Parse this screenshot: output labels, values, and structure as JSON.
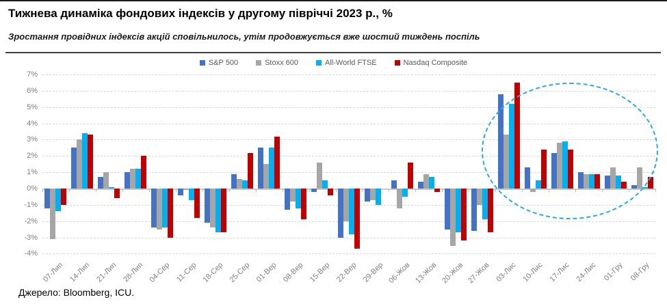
{
  "header": {
    "title": "Тижнева динаміка фондових індексів у другому півріччі 2023 р., %",
    "subtitle": "Зростання провідних індексів акцій сповільнилось, утім продовжується вже шостий тиждень поспіль"
  },
  "footer": {
    "source": "Джерело: Bloomberg, ICU."
  },
  "chart_data": {
    "type": "bar",
    "title": "Тижнева динаміка фондових індексів у другому півріччі 2023 р., %",
    "xlabel": "",
    "ylabel": "",
    "ylim": [
      -4,
      7
    ],
    "ytick_labels": [
      "7%",
      "6%",
      "5%",
      "4%",
      "3%",
      "2%",
      "1%",
      "0%",
      "-1%",
      "-2%",
      "-3%",
      "-4%"
    ],
    "grid": "horizontal-dashed",
    "legend_position": "top-center",
    "categories": [
      "07-Лип",
      "14-Лип",
      "21-Лип",
      "28-Лип",
      "04-Сер",
      "11-Сер",
      "18-Сер",
      "25-Сер",
      "01-Вер",
      "08-Вер",
      "15-Вер",
      "22-Вер",
      "29-Вер",
      "06-Жов",
      "13-Жов",
      "20-Жов",
      "27-Жов",
      "03-Лис",
      "10-Лис",
      "17-Лис",
      "24-Лис",
      "01-Гру",
      "08-Гру"
    ],
    "series": [
      {
        "name": "S&P 500",
        "color": "#4472c4",
        "values": [
          -1.2,
          2.5,
          0.7,
          1.0,
          -2.4,
          -0.4,
          -2.1,
          0.9,
          2.5,
          -1.3,
          -0.2,
          -3.0,
          -0.8,
          0.5,
          0.4,
          -2.5,
          -2.6,
          5.8,
          1.3,
          2.2,
          1.0,
          0.8,
          0.2
        ]
      },
      {
        "name": "Stoxx 600",
        "color": "#a6a6a6",
        "values": [
          -3.1,
          3.0,
          1.0,
          1.2,
          -2.5,
          -0.1,
          -2.4,
          0.6,
          1.5,
          -0.8,
          1.6,
          -2.0,
          -0.7,
          -1.2,
          0.9,
          -3.5,
          -1.0,
          3.3,
          -0.2,
          2.8,
          0.9,
          1.3,
          1.3
        ]
      },
      {
        "name": "All-World FTSE",
        "color": "#00b0f0",
        "values": [
          -1.4,
          3.4,
          0.1,
          1.2,
          -2.4,
          -0.7,
          -2.7,
          0.5,
          2.5,
          -1.2,
          0.5,
          -2.8,
          -1.0,
          -0.5,
          0.7,
          -2.7,
          -1.9,
          5.2,
          0.5,
          2.9,
          0.9,
          0.8,
          0.1
        ]
      },
      {
        "name": "Nasdaq Composite",
        "color": "#c00000",
        "values": [
          -1.0,
          3.3,
          -0.6,
          2.0,
          -3.0,
          -1.8,
          -2.7,
          2.2,
          3.2,
          -1.9,
          -0.4,
          -3.7,
          0.0,
          1.6,
          -0.2,
          -3.2,
          -2.7,
          6.5,
          2.4,
          2.4,
          0.9,
          0.4,
          0.7
        ]
      }
    ],
    "annotation": {
      "type": "dashed-ellipse",
      "color": "#29abe2",
      "note": "highlights the six consecutive growth weeks",
      "covers_categories": [
        "03-Лис",
        "10-Лис",
        "17-Лис",
        "24-Лис",
        "01-Гру",
        "08-Гру"
      ]
    }
  }
}
